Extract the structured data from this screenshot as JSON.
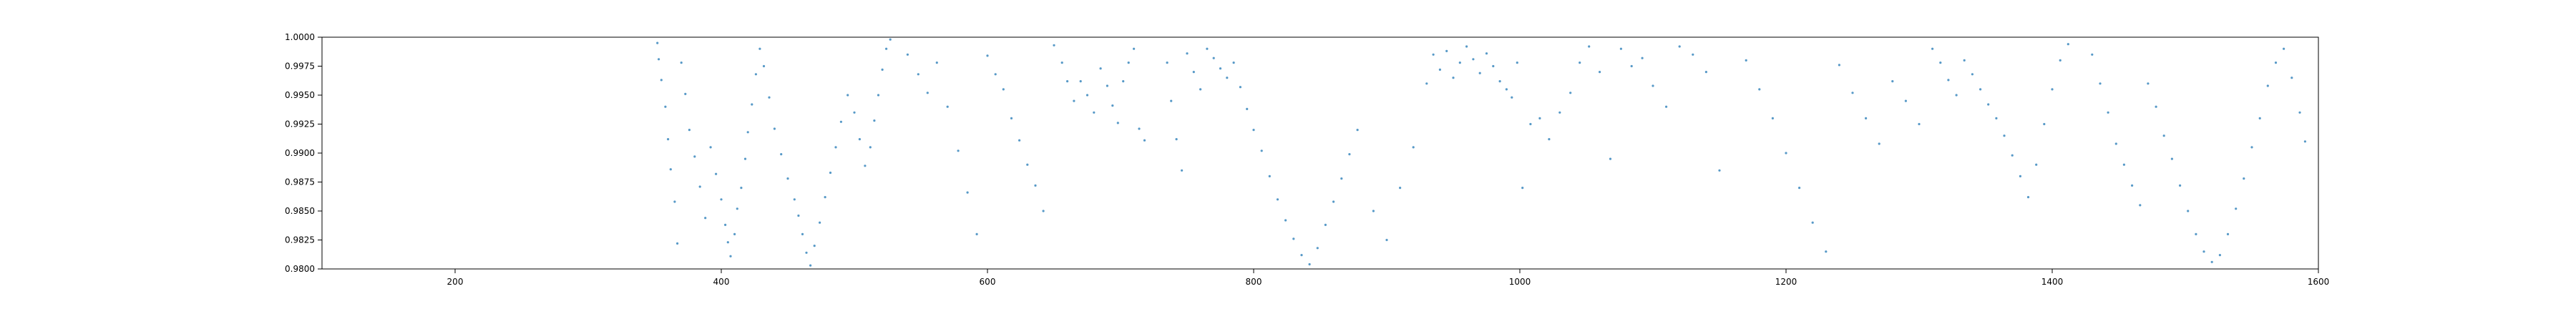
{
  "chart_data": {
    "type": "scatter",
    "title": "",
    "xlabel": "",
    "ylabel": "",
    "xlim": [
      100,
      1600
    ],
    "ylim": [
      0.98,
      1.0
    ],
    "grid": false,
    "legend": "none",
    "point_color": "#1f77b4",
    "x_ticks": [
      {
        "value": 200,
        "label": "200"
      },
      {
        "value": 400,
        "label": "400"
      },
      {
        "value": 600,
        "label": "600"
      },
      {
        "value": 800,
        "label": "800"
      },
      {
        "value": 1000,
        "label": "1000"
      },
      {
        "value": 1200,
        "label": "1200"
      },
      {
        "value": 1400,
        "label": "1400"
      },
      {
        "value": 1600,
        "label": "1600"
      }
    ],
    "y_ticks": [
      {
        "value": 0.98,
        "label": "0.9800"
      },
      {
        "value": 0.9825,
        "label": "0.9825"
      },
      {
        "value": 0.985,
        "label": "0.9850"
      },
      {
        "value": 0.9875,
        "label": "0.9875"
      },
      {
        "value": 0.99,
        "label": "0.9900"
      },
      {
        "value": 0.9925,
        "label": "0.9925"
      },
      {
        "value": 0.995,
        "label": "0.9950"
      },
      {
        "value": 0.9975,
        "label": "0.9975"
      },
      {
        "value": 1.0,
        "label": "1.0000"
      }
    ],
    "series": [
      {
        "values": [
          [
            352,
            0.9995
          ],
          [
            353,
            0.9981
          ],
          [
            355,
            0.9963
          ],
          [
            358,
            0.994
          ],
          [
            360,
            0.9912
          ],
          [
            362,
            0.9886
          ],
          [
            365,
            0.9858
          ],
          [
            367,
            0.9822
          ],
          [
            370,
            0.9978
          ],
          [
            373,
            0.9951
          ],
          [
            376,
            0.992
          ],
          [
            380,
            0.9897
          ],
          [
            384,
            0.9871
          ],
          [
            388,
            0.9844
          ],
          [
            392,
            0.9905
          ],
          [
            396,
            0.9882
          ],
          [
            400,
            0.986
          ],
          [
            403,
            0.9838
          ],
          [
            405,
            0.9823
          ],
          [
            407,
            0.9811
          ],
          [
            410,
            0.983
          ],
          [
            412,
            0.9852
          ],
          [
            415,
            0.987
          ],
          [
            418,
            0.9895
          ],
          [
            420,
            0.9918
          ],
          [
            423,
            0.9942
          ],
          [
            426,
            0.9968
          ],
          [
            429,
            0.999
          ],
          [
            432,
            0.9975
          ],
          [
            436,
            0.9948
          ],
          [
            440,
            0.9921
          ],
          [
            445,
            0.9899
          ],
          [
            450,
            0.9878
          ],
          [
            455,
            0.986
          ],
          [
            458,
            0.9846
          ],
          [
            461,
            0.983
          ],
          [
            464,
            0.9814
          ],
          [
            467,
            0.9803
          ],
          [
            470,
            0.982
          ],
          [
            474,
            0.984
          ],
          [
            478,
            0.9862
          ],
          [
            482,
            0.9883
          ],
          [
            486,
            0.9905
          ],
          [
            490,
            0.9927
          ],
          [
            495,
            0.995
          ],
          [
            500,
            0.9935
          ],
          [
            504,
            0.9912
          ],
          [
            508,
            0.9889
          ],
          [
            512,
            0.9905
          ],
          [
            515,
            0.9928
          ],
          [
            518,
            0.995
          ],
          [
            521,
            0.9972
          ],
          [
            524,
            0.999
          ],
          [
            527,
            0.9998
          ],
          [
            540,
            0.9985
          ],
          [
            548,
            0.9968
          ],
          [
            555,
            0.9952
          ],
          [
            562,
            0.9978
          ],
          [
            570,
            0.994
          ],
          [
            578,
            0.9902
          ],
          [
            585,
            0.9866
          ],
          [
            592,
            0.983
          ],
          [
            600,
            0.9984
          ],
          [
            606,
            0.9968
          ],
          [
            612,
            0.9955
          ],
          [
            618,
            0.993
          ],
          [
            624,
            0.9911
          ],
          [
            630,
            0.989
          ],
          [
            636,
            0.9872
          ],
          [
            642,
            0.985
          ],
          [
            650,
            0.9993
          ],
          [
            656,
            0.9978
          ],
          [
            660,
            0.9962
          ],
          [
            665,
            0.9945
          ],
          [
            670,
            0.9962
          ],
          [
            675,
            0.995
          ],
          [
            680,
            0.9935
          ],
          [
            685,
            0.9973
          ],
          [
            690,
            0.9958
          ],
          [
            694,
            0.9941
          ],
          [
            698,
            0.9926
          ],
          [
            702,
            0.9962
          ],
          [
            706,
            0.9978
          ],
          [
            710,
            0.999
          ],
          [
            714,
            0.9921
          ],
          [
            718,
            0.9911
          ],
          [
            735,
            0.9978
          ],
          [
            738,
            0.9945
          ],
          [
            742,
            0.9912
          ],
          [
            746,
            0.9885
          ],
          [
            750,
            0.9986
          ],
          [
            755,
            0.997
          ],
          [
            760,
            0.9955
          ],
          [
            765,
            0.999
          ],
          [
            770,
            0.9982
          ],
          [
            775,
            0.9973
          ],
          [
            780,
            0.9965
          ],
          [
            785,
            0.9978
          ],
          [
            790,
            0.9957
          ],
          [
            795,
            0.9938
          ],
          [
            800,
            0.992
          ],
          [
            806,
            0.9902
          ],
          [
            812,
            0.988
          ],
          [
            818,
            0.986
          ],
          [
            824,
            0.9842
          ],
          [
            830,
            0.9826
          ],
          [
            836,
            0.9812
          ],
          [
            842,
            0.9804
          ],
          [
            848,
            0.9818
          ],
          [
            854,
            0.9838
          ],
          [
            860,
            0.9858
          ],
          [
            866,
            0.9878
          ],
          [
            872,
            0.9899
          ],
          [
            878,
            0.992
          ],
          [
            890,
            0.985
          ],
          [
            900,
            0.9825
          ],
          [
            910,
            0.987
          ],
          [
            920,
            0.9905
          ],
          [
            930,
            0.996
          ],
          [
            935,
            0.9985
          ],
          [
            940,
            0.9972
          ],
          [
            945,
            0.9988
          ],
          [
            950,
            0.9965
          ],
          [
            955,
            0.9978
          ],
          [
            960,
            0.9992
          ],
          [
            965,
            0.9981
          ],
          [
            970,
            0.9969
          ],
          [
            975,
            0.9986
          ],
          [
            980,
            0.9975
          ],
          [
            985,
            0.9962
          ],
          [
            990,
            0.9955
          ],
          [
            994,
            0.9948
          ],
          [
            998,
            0.9978
          ],
          [
            1002,
            0.987
          ],
          [
            1008,
            0.9925
          ],
          [
            1015,
            0.993
          ],
          [
            1022,
            0.9912
          ],
          [
            1030,
            0.9935
          ],
          [
            1038,
            0.9952
          ],
          [
            1045,
            0.9978
          ],
          [
            1052,
            0.9992
          ],
          [
            1060,
            0.997
          ],
          [
            1068,
            0.9895
          ],
          [
            1076,
            0.999
          ],
          [
            1084,
            0.9975
          ],
          [
            1092,
            0.9982
          ],
          [
            1100,
            0.9958
          ],
          [
            1110,
            0.994
          ],
          [
            1120,
            0.9992
          ],
          [
            1130,
            0.9985
          ],
          [
            1140,
            0.997
          ],
          [
            1150,
            0.9885
          ],
          [
            1170,
            0.998
          ],
          [
            1180,
            0.9955
          ],
          [
            1190,
            0.993
          ],
          [
            1200,
            0.99
          ],
          [
            1210,
            0.987
          ],
          [
            1220,
            0.984
          ],
          [
            1230,
            0.9815
          ],
          [
            1240,
            0.9976
          ],
          [
            1250,
            0.9952
          ],
          [
            1260,
            0.993
          ],
          [
            1270,
            0.9908
          ],
          [
            1280,
            0.9962
          ],
          [
            1290,
            0.9945
          ],
          [
            1300,
            0.9925
          ],
          [
            1310,
            0.999
          ],
          [
            1316,
            0.9978
          ],
          [
            1322,
            0.9963
          ],
          [
            1328,
            0.995
          ],
          [
            1334,
            0.998
          ],
          [
            1340,
            0.9968
          ],
          [
            1346,
            0.9955
          ],
          [
            1352,
            0.9942
          ],
          [
            1358,
            0.993
          ],
          [
            1364,
            0.9915
          ],
          [
            1370,
            0.9898
          ],
          [
            1376,
            0.988
          ],
          [
            1382,
            0.9862
          ],
          [
            1388,
            0.989
          ],
          [
            1394,
            0.9925
          ],
          [
            1400,
            0.9955
          ],
          [
            1406,
            0.998
          ],
          [
            1412,
            0.9994
          ],
          [
            1430,
            0.9985
          ],
          [
            1436,
            0.996
          ],
          [
            1442,
            0.9935
          ],
          [
            1448,
            0.9908
          ],
          [
            1454,
            0.989
          ],
          [
            1460,
            0.9872
          ],
          [
            1466,
            0.9855
          ],
          [
            1472,
            0.996
          ],
          [
            1478,
            0.994
          ],
          [
            1484,
            0.9915
          ],
          [
            1490,
            0.9895
          ],
          [
            1496,
            0.9872
          ],
          [
            1502,
            0.985
          ],
          [
            1508,
            0.983
          ],
          [
            1514,
            0.9815
          ],
          [
            1520,
            0.9806
          ],
          [
            1526,
            0.9812
          ],
          [
            1532,
            0.983
          ],
          [
            1538,
            0.9852
          ],
          [
            1544,
            0.9878
          ],
          [
            1550,
            0.9905
          ],
          [
            1556,
            0.993
          ],
          [
            1562,
            0.9958
          ],
          [
            1568,
            0.9978
          ],
          [
            1574,
            0.999
          ],
          [
            1580,
            0.9965
          ],
          [
            1586,
            0.9935
          ],
          [
            1590,
            0.991
          ]
        ]
      }
    ]
  }
}
